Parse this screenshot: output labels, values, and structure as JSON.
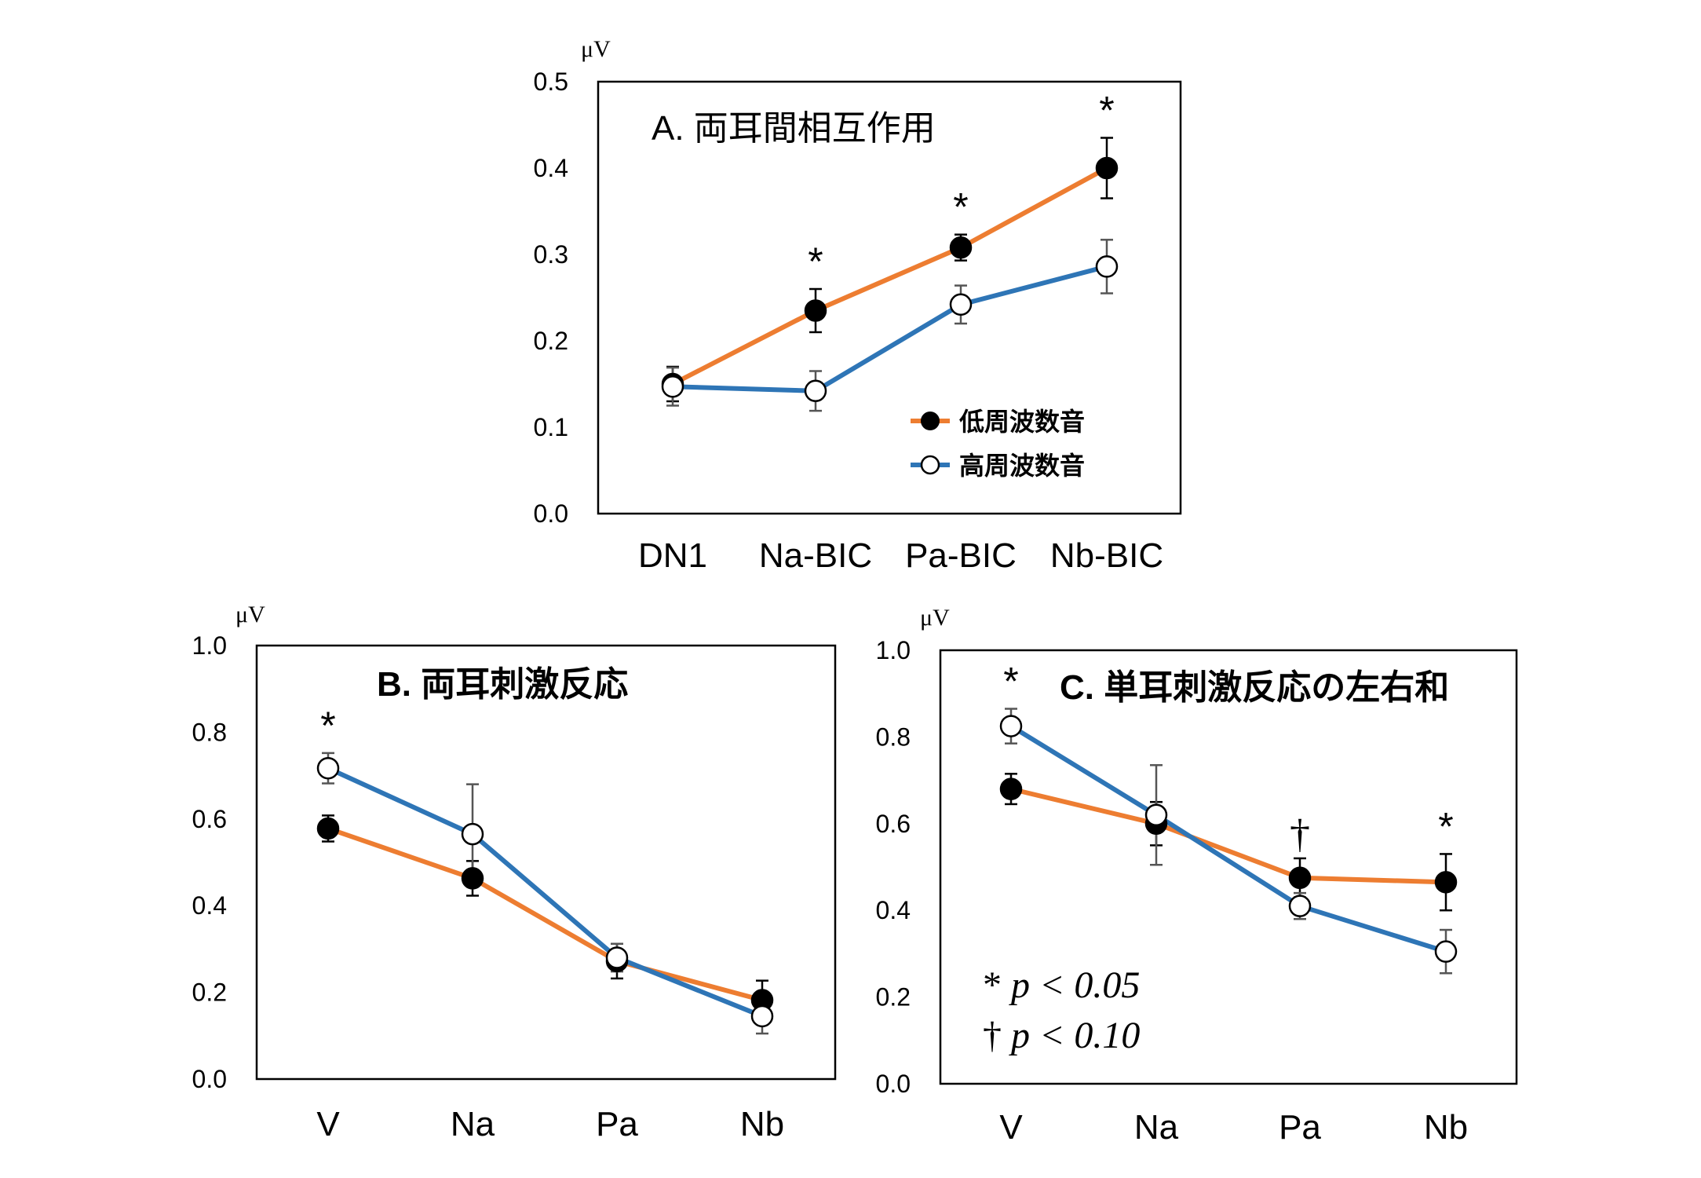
{
  "colors": {
    "low": "#ED7D31",
    "high": "#2E75B6",
    "axis": "#000000",
    "errorbar": "#555555"
  },
  "legend": {
    "low_label": "低周波数音",
    "high_label": "高周波数音"
  },
  "significance_note": {
    "star": "* ",
    "p1": "p < 0.05",
    "dagger": "† ",
    "p2": "p < 0.10"
  },
  "chart_data": [
    {
      "id": "A",
      "type": "line",
      "title": "A. 両耳間相互作用",
      "unit": "μV",
      "categories": [
        "DN1",
        "Na-BIC",
        "Pa-BIC",
        "Nb-BIC"
      ],
      "ylim": [
        0,
        0.5
      ],
      "yticks": [
        "0.0",
        "0.1",
        "0.2",
        "0.3",
        "0.4",
        "0.5"
      ],
      "grid": false,
      "legend_position": "bottom-right",
      "series": [
        {
          "name": "低周波数音",
          "key": "low",
          "marker": "filled",
          "values": [
            0.15,
            0.235,
            0.308,
            0.4
          ],
          "err": [
            0.02,
            0.025,
            0.015,
            0.035
          ]
        },
        {
          "name": "高周波数音",
          "key": "high",
          "marker": "open",
          "values": [
            0.147,
            0.142,
            0.242,
            0.286
          ],
          "err": [
            0.022,
            0.023,
            0.022,
            0.031
          ]
        }
      ],
      "marks": [
        {
          "index": 1,
          "symbol": "*"
        },
        {
          "index": 2,
          "symbol": "*"
        },
        {
          "index": 3,
          "symbol": "*"
        }
      ]
    },
    {
      "id": "B",
      "type": "line",
      "title": "B. 両耳刺激反応",
      "unit": "μV",
      "categories": [
        "V",
        "Na",
        "Pa",
        "Nb"
      ],
      "ylim": [
        0,
        1.0
      ],
      "yticks": [
        "0.0",
        "0.2",
        "0.4",
        "0.6",
        "0.8",
        "1.0"
      ],
      "grid": false,
      "series": [
        {
          "name": "低周波数音",
          "key": "low",
          "marker": "filled",
          "values": [
            0.578,
            0.463,
            0.272,
            0.182
          ],
          "err": [
            0.03,
            0.04,
            0.04,
            0.045
          ]
        },
        {
          "name": "高周波数音",
          "key": "high",
          "marker": "open",
          "values": [
            0.717,
            0.565,
            0.28,
            0.145
          ],
          "err": [
            0.035,
            0.115,
            0.032,
            0.04
          ]
        }
      ],
      "marks": [
        {
          "index": 0,
          "symbol": "*"
        }
      ]
    },
    {
      "id": "C",
      "type": "line",
      "title": "C. 単耳刺激反応の左右和",
      "unit": "μV",
      "categories": [
        "V",
        "Na",
        "Pa",
        "Nb"
      ],
      "ylim": [
        0,
        1.0
      ],
      "yticks": [
        "0.0",
        "0.2",
        "0.4",
        "0.6",
        "0.8",
        "1.0"
      ],
      "grid": false,
      "series": [
        {
          "name": "低周波数音",
          "key": "low",
          "marker": "filled",
          "values": [
            0.68,
            0.6,
            0.475,
            0.465
          ],
          "err": [
            0.035,
            0.05,
            0.045,
            0.065
          ]
        },
        {
          "name": "高周波数音",
          "key": "high",
          "marker": "open",
          "values": [
            0.825,
            0.62,
            0.41,
            0.305
          ],
          "err": [
            0.04,
            0.115,
            0.03,
            0.05
          ]
        }
      ],
      "marks": [
        {
          "index": 0,
          "symbol": "*"
        },
        {
          "index": 2,
          "symbol": "†"
        },
        {
          "index": 3,
          "symbol": "*"
        }
      ]
    }
  ]
}
